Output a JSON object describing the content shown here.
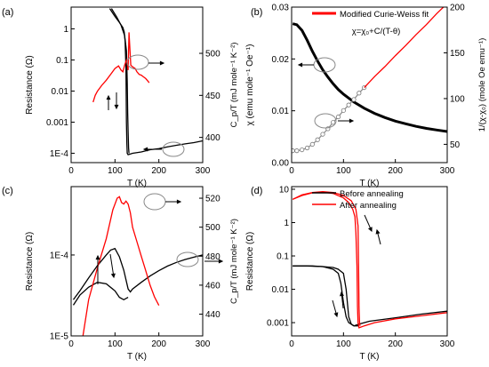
{
  "chart_data": [
    {
      "panel_label": "(a)",
      "type": "line",
      "xlabel": "T (K)",
      "ylabel_left": "Resistance (Ω)",
      "ylabel_right": "C_p/T (mJ mole⁻¹ K⁻²)",
      "xlim": [
        0,
        300
      ],
      "xticks": [
        "0",
        "100",
        "200",
        "300"
      ],
      "ylim_left": [
        5e-05,
        5
      ],
      "yscale_left": "log",
      "yticks_left": [
        {
          "value": 0.0001,
          "label": "1E-4"
        },
        {
          "value": 0.001,
          "label": "0.001"
        },
        {
          "value": 0.01,
          "label": "0.01"
        },
        {
          "value": 0.1,
          "label": "0.1"
        },
        {
          "value": 1,
          "label": "1"
        }
      ],
      "ylim_right": [
        370,
        555
      ],
      "yticks_right": [
        "400",
        "450",
        "500"
      ],
      "series": [
        {
          "axis": "left",
          "color": "#000000",
          "x": [
            88,
            100,
            110,
            118,
            121,
            123,
            125,
            126,
            127,
            128,
            130,
            140,
            160,
            180,
            200,
            220,
            240,
            260,
            280,
            300
          ],
          "y": [
            4.5,
            2.5,
            1.6,
            1.1,
            0.8,
            0.4,
            0.05,
            0.001,
            0.0002,
            0.0001,
            9e-05,
            0.0001,
            0.00011,
            0.00013,
            0.00014,
            0.00016,
            0.00018,
            0.0002,
            0.00022,
            0.00025
          ]
        },
        {
          "axis": "left",
          "color": "#000000",
          "x": [
            92,
            104,
            114,
            122,
            126,
            128,
            129,
            130,
            131,
            132
          ],
          "y": [
            4.5,
            2.4,
            1.3,
            0.6,
            0.2,
            0.02,
            0.002,
            0.0005,
            0.00015,
            0.0001
          ]
        },
        {
          "axis": "right",
          "color": "#ff0000",
          "x": [
            50,
            55,
            60,
            70,
            80,
            90,
            100,
            108,
            114,
            118,
            120,
            122,
            124,
            126,
            128,
            130,
            132,
            136,
            140,
            146,
            150,
            155,
            160,
            165,
            170,
            175,
            178
          ],
          "y": [
            442,
            450,
            455,
            462,
            468,
            475,
            482,
            485,
            480,
            478,
            482,
            486,
            489,
            492,
            488,
            480,
            525,
            486,
            484,
            482,
            478,
            475,
            474,
            472,
            470,
            467,
            465
          ]
        }
      ],
      "annotations": [
        "arrows indicating cooling and warming",
        "ellipses marking curves with arrows to axes"
      ]
    },
    {
      "panel_label": "(b)",
      "type": "line",
      "xlabel": "T (K)",
      "ylabel_left": "χ (emu mole⁻¹ Oe⁻¹)",
      "ylabel_right": "1/(χ-χ₀) (mole Oe emu⁻¹)",
      "xlim": [
        0,
        300
      ],
      "xticks": [
        "0",
        "100",
        "200",
        "300"
      ],
      "ylim_left": [
        0,
        0.03
      ],
      "yticks_left": [
        "0.00",
        "0.01",
        "0.02",
        "0.03"
      ],
      "ylim_right": [
        30,
        200
      ],
      "yticks_right": [
        "50",
        "100",
        "150",
        "200"
      ],
      "legend": {
        "placement": "top-right",
        "entries": [
          {
            "label": "Modified Curie-Weiss fit",
            "color": "#ff0000"
          }
        ]
      },
      "formula": "χ=χ₀+C/(T-θ)",
      "series": [
        {
          "axis": "left",
          "color": "#000000",
          "x": [
            2,
            10,
            20,
            30,
            40,
            50,
            60,
            70,
            80,
            90,
            100,
            120,
            140,
            160,
            180,
            200,
            220,
            240,
            260,
            280,
            300
          ],
          "y": [
            0.0268,
            0.0266,
            0.0255,
            0.0236,
            0.0215,
            0.0196,
            0.0179,
            0.0165,
            0.0152,
            0.0141,
            0.0132,
            0.0117,
            0.0105,
            0.0095,
            0.0087,
            0.008,
            0.0075,
            0.007,
            0.0066,
            0.0063,
            0.006
          ]
        },
        {
          "axis": "right",
          "color": "#888888",
          "marker": "circle",
          "x": [
            2,
            10,
            20,
            30,
            40,
            50,
            60,
            70,
            80,
            90,
            100,
            110,
            120,
            130,
            140
          ],
          "y": [
            43,
            43,
            44,
            46,
            50,
            55,
            61,
            67,
            74,
            80,
            87,
            93,
            99,
            106,
            112
          ]
        },
        {
          "axis": "right",
          "color": "#ff0000",
          "x": [
            140,
            160,
            180,
            200,
            220,
            240,
            260,
            280,
            300
          ],
          "y": [
            112,
            124,
            135,
            147,
            158,
            170,
            181,
            193,
            204
          ]
        }
      ]
    },
    {
      "panel_label": "(c)",
      "type": "line",
      "xlabel": "T (K)",
      "ylabel_left": "Resistance (Ω)",
      "ylabel_right": "C_p/T (mJ mole⁻¹ K⁻²)",
      "xlim": [
        0,
        300
      ],
      "xticks": [
        "0",
        "100",
        "200",
        "300"
      ],
      "ylim_left": [
        1e-05,
        0.0007
      ],
      "yscale_left": "log",
      "yticks_left": [
        {
          "value": 1e-05,
          "label": "1E-5"
        },
        {
          "value": 0.0001,
          "label": "1E-4"
        }
      ],
      "ylim_right": [
        425,
        528
      ],
      "yticks_right": [
        "440",
        "460",
        "480",
        "500",
        "520"
      ],
      "series": [
        {
          "axis": "left",
          "color": "#000000",
          "x": [
            5,
            20,
            40,
            60,
            80,
            90,
            100,
            110,
            120,
            130,
            135,
            140,
            160,
            180,
            200,
            220,
            240,
            260,
            280,
            300
          ],
          "y": [
            2.8e-05,
            3.6e-05,
            5.2e-05,
            7.4e-05,
            0.0001,
            0.000115,
            0.00012,
            9.5e-05,
            6.5e-05,
            3.8e-05,
            3.5e-05,
            3.8e-05,
            4.6e-05,
            5.5e-05,
            6.4e-05,
            7.3e-05,
            8.1e-05,
            8.8e-05,
            9.4e-05,
            0.0001
          ]
        },
        {
          "axis": "left",
          "color": "#000000",
          "x": [
            5,
            20,
            40,
            60,
            80,
            100,
            110,
            120,
            130
          ],
          "y": [
            2.4e-05,
            3.2e-05,
            4e-05,
            4.6e-05,
            4.4e-05,
            3.6e-05,
            3e-05,
            2.8e-05,
            3e-05
          ]
        },
        {
          "axis": "right",
          "color": "#ff0000",
          "x": [
            27,
            40,
            60,
            80,
            95,
            105,
            110,
            115,
            120,
            125,
            130,
            135,
            140,
            150,
            160,
            170,
            180,
            190,
            200
          ],
          "y": [
            425,
            450,
            472,
            492,
            512,
            520,
            521,
            517,
            516,
            518,
            516,
            510,
            500,
            490,
            480,
            470,
            460,
            452,
            446
          ]
        }
      ],
      "annotations": [
        "arrows indicating cooling and warming",
        "ellipse marking Cp/T curve"
      ]
    },
    {
      "panel_label": "(d)",
      "type": "line",
      "xlabel": "T (K)",
      "ylabel_left": "Resistance (Ω)",
      "xlim": [
        0,
        300
      ],
      "xticks": [
        "0",
        "100",
        "200",
        "300"
      ],
      "ylim_left": [
        0.0004,
        12
      ],
      "yscale_left": "log",
      "yticks_left": [
        {
          "value": 0.001,
          "label": "0.001"
        },
        {
          "value": 0.01,
          "label": "0.01"
        },
        {
          "value": 0.1,
          "label": "0.1"
        },
        {
          "value": 1,
          "label": "1"
        },
        {
          "value": 10,
          "label": "10"
        }
      ],
      "legend": {
        "placement": "top-right",
        "entries": [
          {
            "label": "Before annealing",
            "color": "#000000"
          },
          {
            "label": "After annealing",
            "color": "#ff0000"
          }
        ]
      },
      "series": [
        {
          "name": "Before annealing",
          "axis": "left",
          "color": "#000000",
          "x": [
            2,
            20,
            40,
            60,
            80,
            90,
            100,
            105,
            110,
            115,
            120,
            130,
            150,
            200,
            250,
            300
          ],
          "y": [
            0.05,
            0.05,
            0.05,
            0.048,
            0.045,
            0.04,
            0.03,
            0.01,
            0.0015,
            0.0009,
            0.0008,
            0.0009,
            0.0011,
            0.0014,
            0.0018,
            0.0022
          ]
        },
        {
          "name": "Before annealing",
          "axis": "left",
          "color": "#000000",
          "x": [
            2,
            30,
            60,
            80,
            90,
            95,
            100,
            105,
            110,
            115,
            120,
            130
          ],
          "y": [
            0.05,
            0.05,
            0.048,
            0.04,
            0.03,
            0.015,
            0.004,
            0.0015,
            0.001,
            0.0009,
            0.0008,
            0.0008
          ]
        },
        {
          "name": "After annealing",
          "axis": "left",
          "color": "#ff0000",
          "x": [
            2,
            20,
            40,
            60,
            80,
            100,
            110,
            118,
            122,
            124,
            126,
            127,
            128,
            130,
            140,
            160,
            200,
            250,
            300
          ],
          "y": [
            5,
            6.5,
            7.8,
            8.2,
            7.5,
            5.5,
            4,
            2.5,
            1.5,
            0.5,
            0.05,
            0.003,
            0.001,
            0.0007,
            0.0008,
            0.001,
            0.0013,
            0.0016,
            0.002
          ]
        },
        {
          "name": "After annealing",
          "axis": "left",
          "color": "#ff0000",
          "x": [
            2,
            20,
            40,
            60,
            80,
            100,
            115,
            124,
            128,
            129,
            130,
            131,
            132
          ],
          "y": [
            5,
            6.8,
            8,
            8.5,
            8,
            6.5,
            4.5,
            2.5,
            0.8,
            0.05,
            0.003,
            0.001,
            0.0008
          ]
        }
      ],
      "annotations": [
        "arrows indicating cooling and warming"
      ]
    }
  ]
}
